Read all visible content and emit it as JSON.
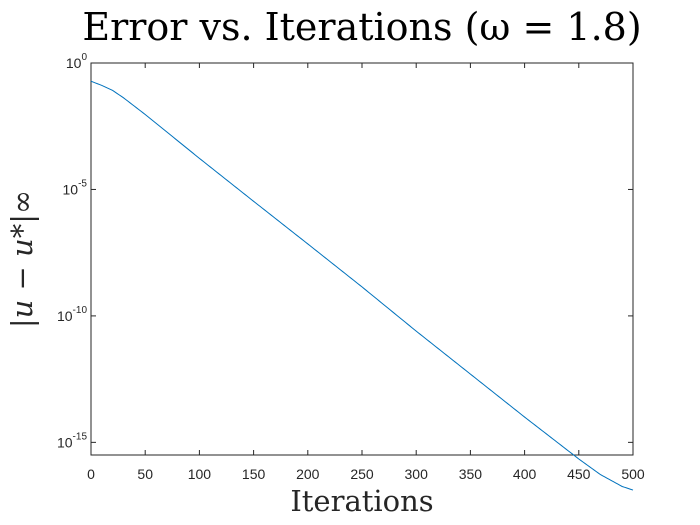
{
  "chart_data": {
    "type": "line",
    "title": "Error vs. Iterations (ω = 1.8)",
    "xlabel": "Iterations",
    "ylabel": "|u − u*|∞",
    "xlim": [
      0,
      500
    ],
    "ylim_exponents": [
      -15.5,
      0
    ],
    "yscale": "log",
    "grid": false,
    "x_ticks": [
      0,
      50,
      100,
      150,
      200,
      250,
      300,
      350,
      400,
      450,
      500
    ],
    "y_ticks": [
      {
        "base": "10",
        "exp": "0",
        "value_exponent": 0
      },
      {
        "base": "10",
        "exp": "-5",
        "value_exponent": -5
      },
      {
        "base": "10",
        "exp": "-10",
        "value_exponent": -10
      },
      {
        "base": "10",
        "exp": "-15",
        "value_exponent": -15
      }
    ],
    "series": [
      {
        "color": "#0072bd",
        "points": [
          {
            "x": 0,
            "y": 0.19
          },
          {
            "x": 10,
            "y": 0.13
          },
          {
            "x": 20,
            "y": 0.082
          },
          {
            "x": 30,
            "y": 0.042
          },
          {
            "x": 50,
            "y": 0.0092
          },
          {
            "x": 100,
            "y": 0.00017
          },
          {
            "x": 150,
            "y": 3.4e-06
          },
          {
            "x": 200,
            "y": 7e-08
          },
          {
            "x": 250,
            "y": 1.4e-09
          },
          {
            "x": 300,
            "y": 2.5e-11
          },
          {
            "x": 350,
            "y": 5e-13
          },
          {
            "x": 400,
            "y": 1e-14
          },
          {
            "x": 450,
            "y": 2.2e-16
          },
          {
            "x": 470,
            "y": 5.3e-17
          },
          {
            "x": 490,
            "y": 1.8e-17
          },
          {
            "x": 500,
            "y": 1.3e-17
          }
        ]
      }
    ]
  }
}
